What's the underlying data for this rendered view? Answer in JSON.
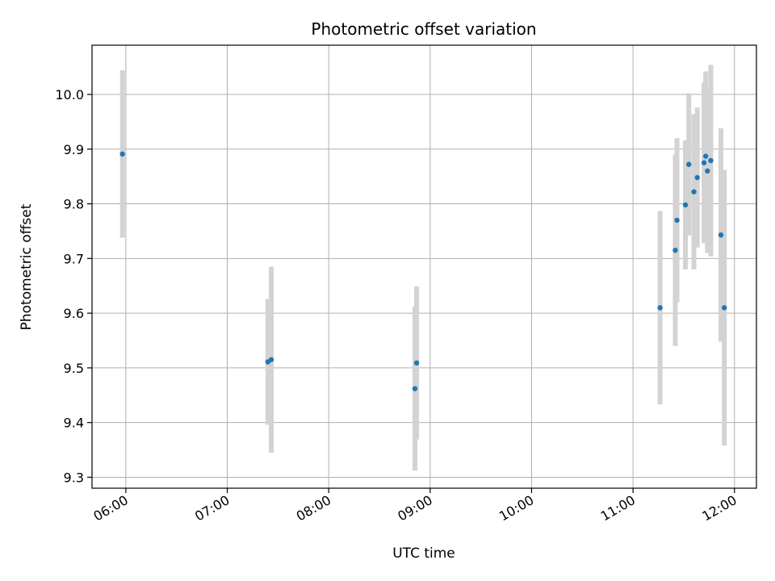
{
  "chart_data": {
    "type": "scatter",
    "title": "Photometric offset variation",
    "xlabel": "UTC time",
    "ylabel": "Photometric offset",
    "x_ticks": [
      "06:00",
      "07:00",
      "08:00",
      "09:00",
      "10:00",
      "11:00",
      "12:00"
    ],
    "y_ticks": [
      "9.3",
      "9.4",
      "9.5",
      "9.6",
      "9.7",
      "9.8",
      "9.9",
      "10.0"
    ],
    "xlim": [
      "05:40",
      "12:13"
    ],
    "ylim": [
      9.28,
      10.09
    ],
    "grid": true,
    "point_color": "#1f77b4",
    "errorbar_color": "#d3d3d3",
    "series": [
      {
        "points": [
          {
            "t": "05:58",
            "y": 9.891,
            "err": 0.153
          },
          {
            "t": "07:24",
            "y": 9.511,
            "err": 0.115
          },
          {
            "t": "07:26",
            "y": 9.515,
            "err": 0.17
          },
          {
            "t": "08:51",
            "y": 9.462,
            "err": 0.15
          },
          {
            "t": "08:52",
            "y": 9.509,
            "err": 0.14
          },
          {
            "t": "11:16",
            "y": 9.61,
            "err": 0.177
          },
          {
            "t": "11:25",
            "y": 9.715,
            "err": 0.175
          },
          {
            "t": "11:26",
            "y": 9.77,
            "err": 0.15
          },
          {
            "t": "11:31",
            "y": 9.798,
            "err": 0.118
          },
          {
            "t": "11:33",
            "y": 9.872,
            "err": 0.13
          },
          {
            "t": "11:36",
            "y": 9.822,
            "err": 0.142
          },
          {
            "t": "11:38",
            "y": 9.848,
            "err": 0.128
          },
          {
            "t": "11:42",
            "y": 9.875,
            "err": 0.147
          },
          {
            "t": "11:43",
            "y": 9.887,
            "err": 0.155
          },
          {
            "t": "11:44",
            "y": 9.86,
            "err": 0.15
          },
          {
            "t": "11:46",
            "y": 9.879,
            "err": 0.175
          },
          {
            "t": "11:52",
            "y": 9.743,
            "err": 0.195
          },
          {
            "t": "11:54",
            "y": 9.61,
            "err": 0.252
          }
        ]
      }
    ]
  }
}
